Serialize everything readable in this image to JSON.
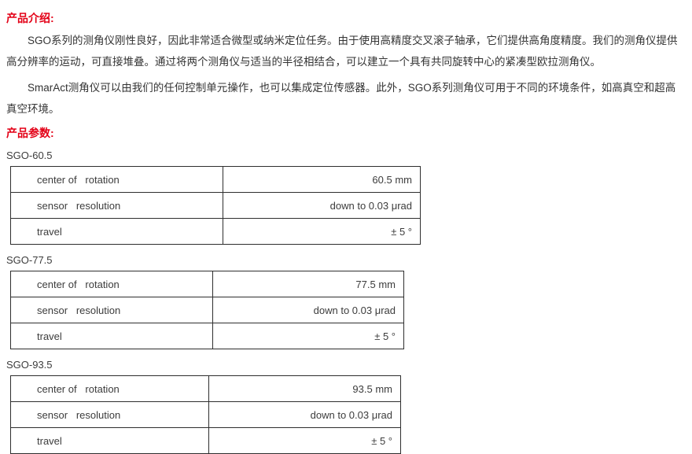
{
  "colors": {
    "heading_red": "#e30016",
    "body_text": "#333333",
    "table_border": "#2e2e2e"
  },
  "intro": {
    "heading": "产品介绍:",
    "paragraphs": [
      "SGO系列的测角仪刚性良好，因此非常适合微型或纳米定位任务。由于使用高精度交叉滚子轴承，它们提供高角度精度。我们的测角仪提供高分辨率的运动，可直接堆叠。通过将两个测角仪与适当的半径相结合，可以建立一个具有共同旋转中心的紧凑型欧拉测角仪。",
      "SmarAct测角仪可以由我们的任何控制单元操作，也可以集成定位传感器。此外，SGO系列测角仪可用于不同的环境条件，如高真空和超高真空环境。"
    ]
  },
  "params_heading": "产品参数:",
  "products": [
    {
      "model": "SGO-60.5",
      "rows": [
        {
          "label": "center of   rotation",
          "value": "60.5 mm"
        },
        {
          "label": "sensor   resolution",
          "value": "down to 0.03 μrad"
        },
        {
          "label": "travel",
          "value": "± 5 °"
        }
      ]
    },
    {
      "model": "SGO-77.5",
      "rows": [
        {
          "label": "center of   rotation",
          "value": "77.5 mm"
        },
        {
          "label": "sensor   resolution",
          "value": "down to 0.03 μrad"
        },
        {
          "label": "travel",
          "value": "± 5 °"
        }
      ]
    },
    {
      "model": "SGO-93.5",
      "rows": [
        {
          "label": "center of   rotation",
          "value": "93.5 mm"
        },
        {
          "label": "sensor   resolution",
          "value": "down to 0.03 μrad"
        },
        {
          "label": "travel",
          "value": "± 5 °"
        }
      ]
    }
  ]
}
